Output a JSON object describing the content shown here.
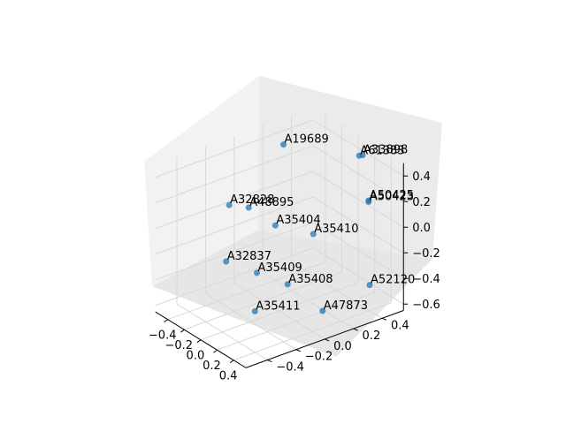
{
  "chart_data": {
    "type": "scatter",
    "projection": "3d",
    "title": "",
    "xlabel": "",
    "ylabel": "",
    "zlabel": "",
    "grid": true,
    "marker_color": "#1f77b4",
    "pane_color": "#f2f2f2",
    "grid_color": "#d8d8d8",
    "x_ticks": [
      "−0.4",
      "−0.2",
      "0.0",
      "0.2",
      "0.4"
    ],
    "y_ticks": [
      "−0.4",
      "−0.2",
      "0.0",
      "0.2",
      "0.4"
    ],
    "z_ticks": [
      "−0.6",
      "−0.4",
      "−0.2",
      "0.0",
      "0.2",
      "0.4"
    ],
    "xlim": [
      -0.55,
      0.55
    ],
    "ylim": [
      -0.55,
      0.55
    ],
    "zlim": [
      -0.65,
      0.5
    ],
    "points": [
      {
        "label": "A19689",
        "x": -0.3,
        "y": 0.2,
        "z": 0.45
      },
      {
        "label": "A32828",
        "x": -0.35,
        "y": -0.15,
        "z": 0.1
      },
      {
        "label": "A48895",
        "x": -0.2,
        "y": -0.1,
        "z": 0.12
      },
      {
        "label": "A35404",
        "x": -0.05,
        "y": 0.0,
        "z": 0.0
      },
      {
        "label": "A35410",
        "x": 0.15,
        "y": 0.15,
        "z": -0.05
      },
      {
        "label": "A32837",
        "x": -0.3,
        "y": -0.2,
        "z": -0.3
      },
      {
        "label": "A35409",
        "x": -0.1,
        "y": -0.1,
        "z": -0.35
      },
      {
        "label": "A35408",
        "x": 0.1,
        "y": 0.0,
        "z": -0.4
      },
      {
        "label": "A35411",
        "x": 0.05,
        "y": -0.2,
        "z": -0.55
      },
      {
        "label": "A47873",
        "x": 0.35,
        "y": 0.1,
        "z": -0.55
      },
      {
        "label": "A52120",
        "x": 0.4,
        "y": 0.4,
        "z": -0.45
      },
      {
        "label": "A50425",
        "x": 0.3,
        "y": 0.45,
        "z": 0.15
      },
      {
        "label": "A50423",
        "x": 0.3,
        "y": 0.45,
        "z": 0.14
      },
      {
        "label": "A61383",
        "x": 0.1,
        "y": 0.5,
        "z": 0.4
      },
      {
        "label": "A33898",
        "x": 0.14,
        "y": 0.5,
        "z": 0.42
      }
    ]
  }
}
